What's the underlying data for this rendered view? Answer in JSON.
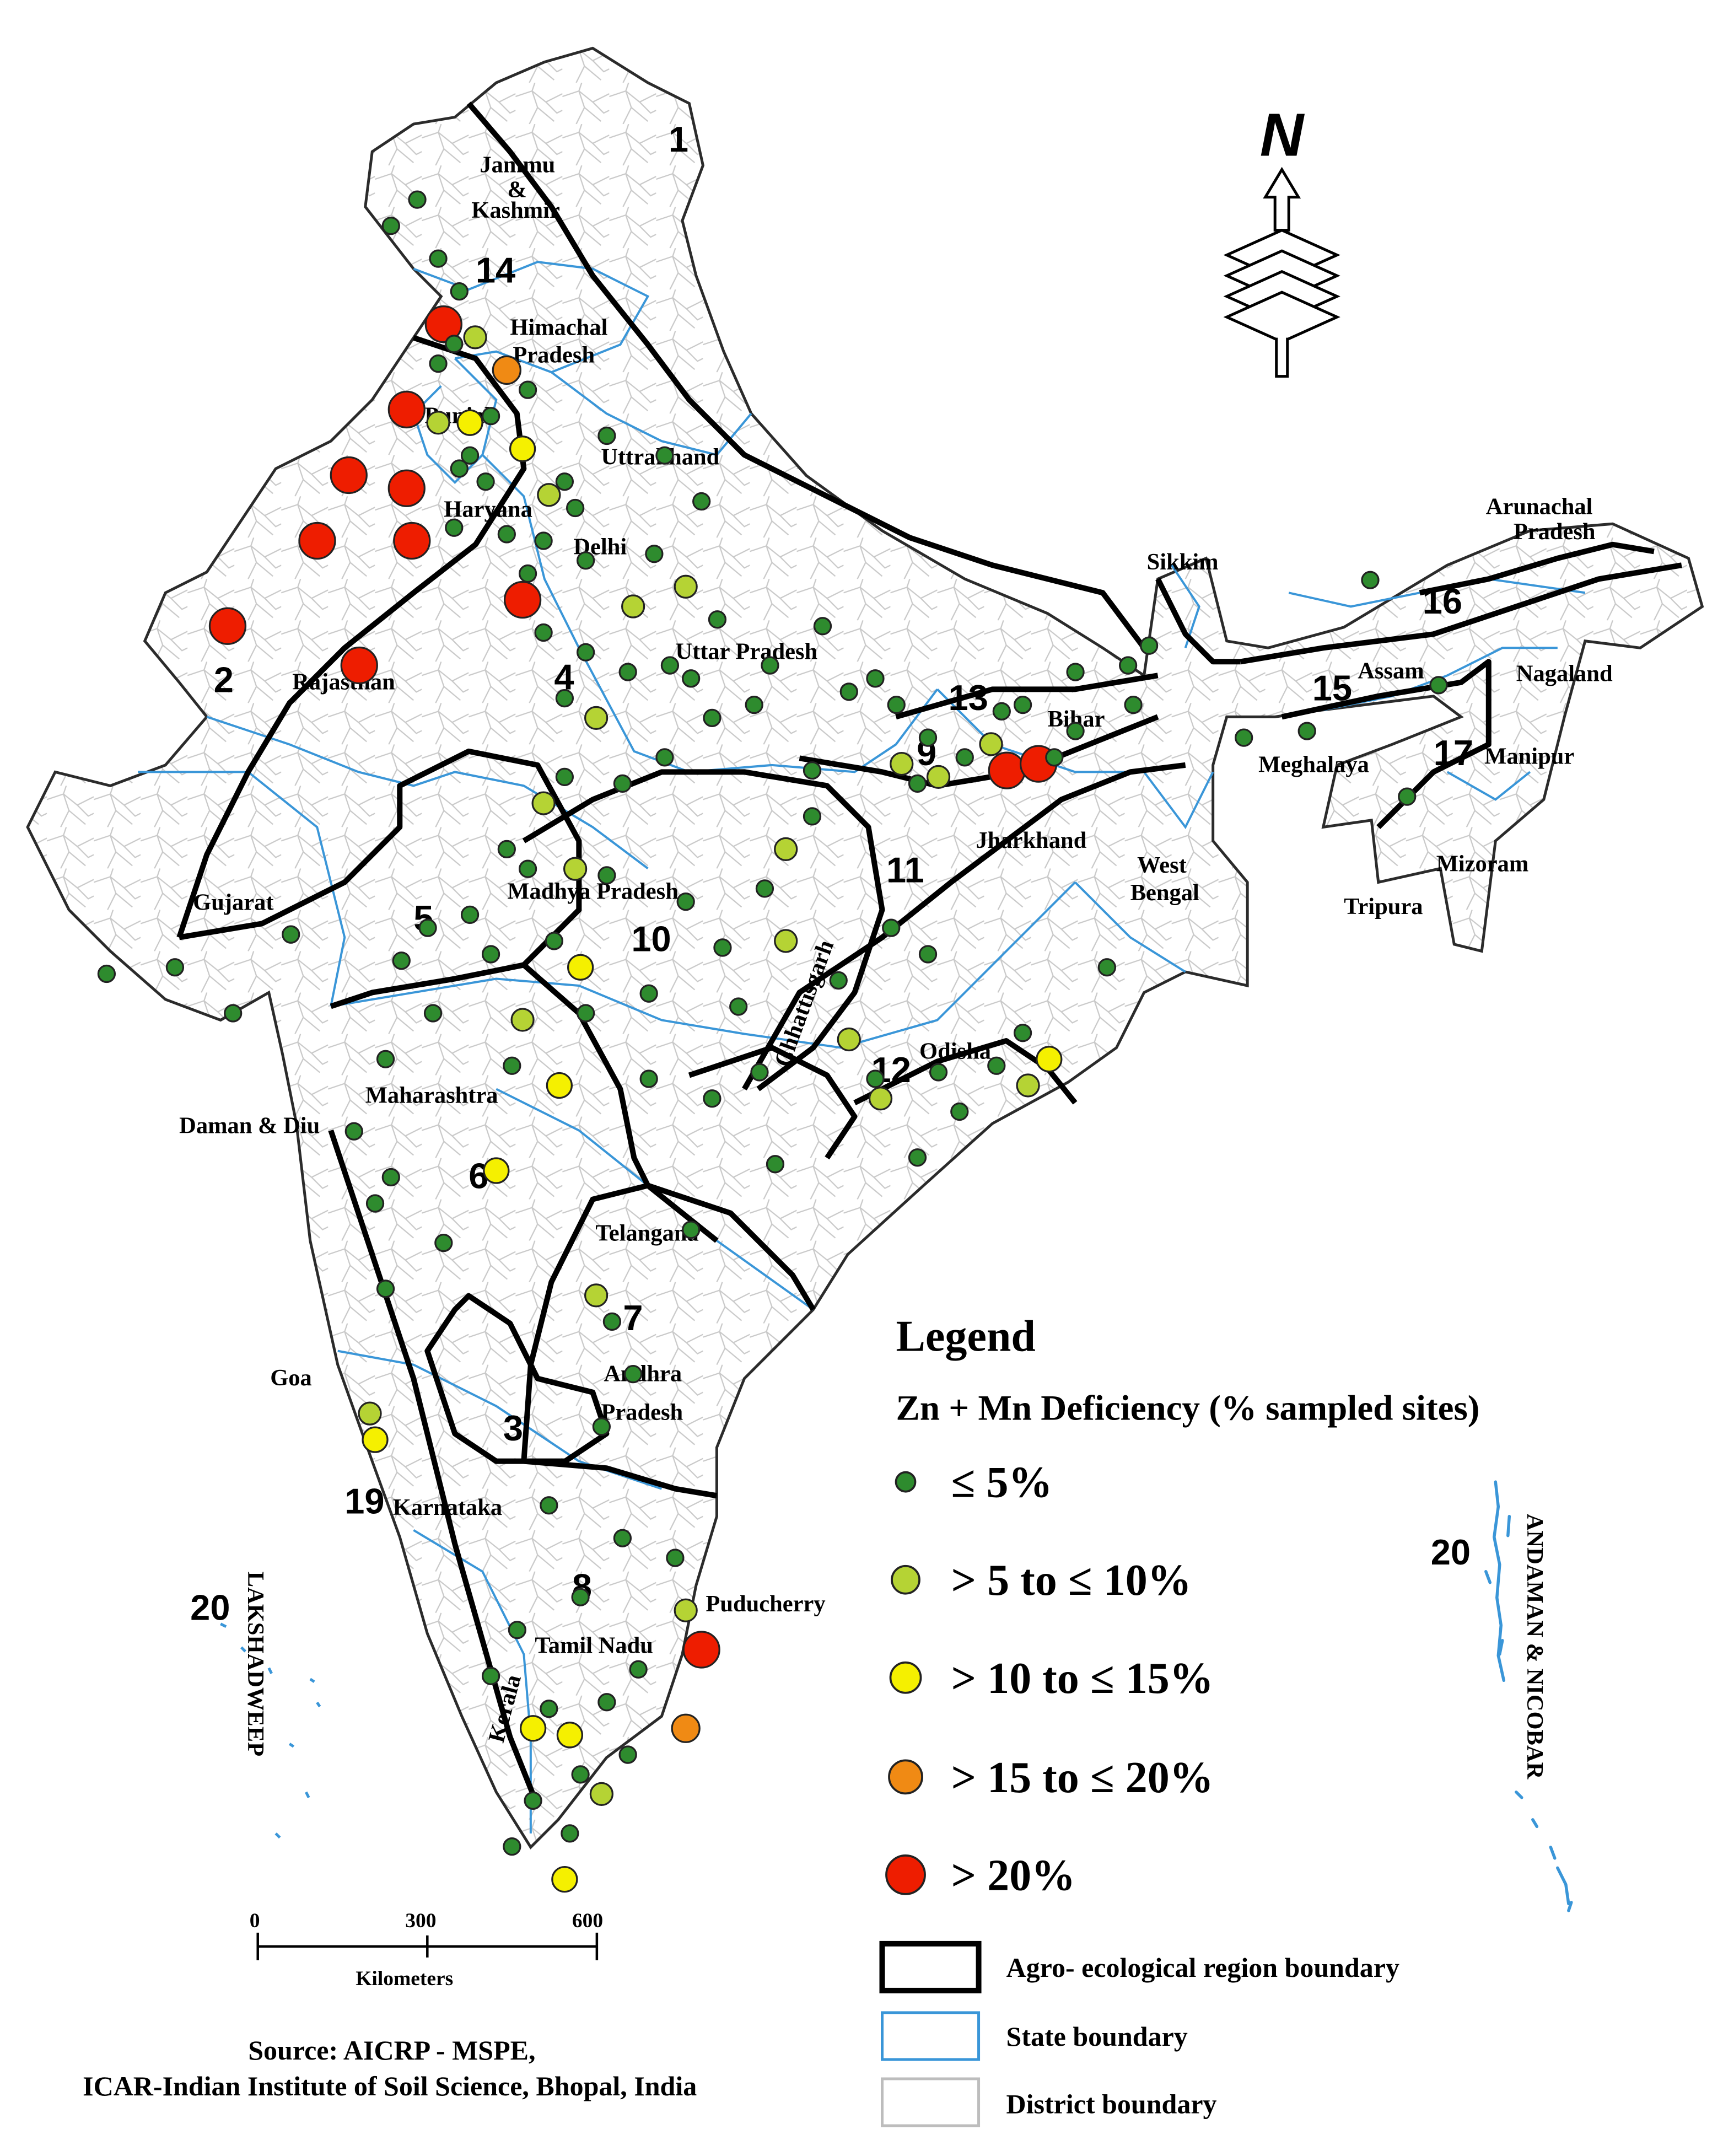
{
  "legend": {
    "title": "Legend",
    "subtitle": "Zn + Mn  Deficiency (% sampled sites)",
    "classes": [
      {
        "label": "≤ 5%",
        "color": "#2e8b2e"
      },
      {
        "label": "> 5 to ≤ 10%",
        "color": "#b5d334"
      },
      {
        "label": "> 10 to ≤ 15%",
        "color": "#f5f000"
      },
      {
        "label": "> 15 to ≤ 20%",
        "color": "#f08a14"
      },
      {
        "label": "> 20%",
        "color": "#ee1d00"
      }
    ],
    "boundaries": [
      {
        "label": "Agro- ecological region boundary",
        "color": "#000000"
      },
      {
        "label": "State boundary",
        "color": "#3a96d8"
      },
      {
        "label": "District boundary",
        "color": "#bdbdbd"
      }
    ]
  },
  "north_arrow": {
    "letter": "N"
  },
  "scale_bar": {
    "ticks": [
      "0",
      "300",
      "600"
    ],
    "unit": "Kilometers"
  },
  "source": {
    "line1": "Source: AICRP - MSPE,",
    "line2": "ICAR-Indian Institute of Soil Science, Bhopal, India"
  },
  "region_numbers": [
    "1",
    "2",
    "3",
    "4",
    "5",
    "6",
    "7",
    "8",
    "9",
    "10",
    "11",
    "12",
    "13",
    "14",
    "15",
    "16",
    "17",
    "19",
    "20",
    "20"
  ],
  "state_labels": [
    "Jammu",
    "&",
    "Kashmir",
    "Himachal",
    "Pradesh",
    "Punjab",
    "Uttrakhand",
    "Haryana",
    "Delhi",
    "Rajasthan",
    "Uttar Pradesh",
    "Sikkim",
    "Arunachal",
    "Pradesh",
    "Assam",
    "Nagaland",
    "Meghalaya",
    "Manipur",
    "Mizoram",
    "Tripura",
    "Bihar",
    "Jharkhand",
    "West",
    "Bengal",
    "Gujarat",
    "Madhya Pradesh",
    "Chhattisgarh",
    "Odisha",
    "Maharashtra",
    "Daman & Diu",
    "Telangana",
    "Andhra",
    "Pradesh",
    "Goa",
    "Karnataka",
    "Puducherry",
    "Tamil Nadu",
    "Kerala",
    "LAKSHADWEEP",
    "ANDAMAN & NICOBAR"
  ],
  "sites": [
    {
      "c": 0,
      "lon": 74.8,
      "lat": 34.1
    },
    {
      "c": 0,
      "lon": 74.3,
      "lat": 33.7
    },
    {
      "c": 0,
      "lon": 75.2,
      "lat": 33.2
    },
    {
      "c": 0,
      "lon": 75.6,
      "lat": 32.7
    },
    {
      "c": 4,
      "lon": 75.3,
      "lat": 32.2
    },
    {
      "c": 1,
      "lon": 75.9,
      "lat": 32.0
    },
    {
      "c": 0,
      "lon": 75.5,
      "lat": 31.9
    },
    {
      "c": 3,
      "lon": 76.5,
      "lat": 31.5
    },
    {
      "c": 0,
      "lon": 75.2,
      "lat": 31.6
    },
    {
      "c": 4,
      "lon": 74.6,
      "lat": 30.9
    },
    {
      "c": 1,
      "lon": 75.2,
      "lat": 30.7
    },
    {
      "c": 2,
      "lon": 75.8,
      "lat": 30.7
    },
    {
      "c": 0,
      "lon": 75.8,
      "lat": 30.2
    },
    {
      "c": 2,
      "lon": 76.8,
      "lat": 30.3
    },
    {
      "c": 4,
      "lon": 73.5,
      "lat": 29.9
    },
    {
      "c": 4,
      "lon": 74.6,
      "lat": 29.7
    },
    {
      "c": 1,
      "lon": 77.3,
      "lat": 29.6
    },
    {
      "c": 0,
      "lon": 77.8,
      "lat": 29.4
    },
    {
      "c": 4,
      "lon": 72.9,
      "lat": 28.9
    },
    {
      "c": 4,
      "lon": 74.7,
      "lat": 28.9
    },
    {
      "c": 4,
      "lon": 76.8,
      "lat": 28.0
    },
    {
      "c": 4,
      "lon": 71.2,
      "lat": 27.6
    },
    {
      "c": 4,
      "lon": 73.7,
      "lat": 27.0
    },
    {
      "c": 1,
      "lon": 78.9,
      "lat": 27.9
    },
    {
      "c": 1,
      "lon": 79.9,
      "lat": 28.2
    },
    {
      "c": 0,
      "lon": 80.0,
      "lat": 26.8
    },
    {
      "c": 1,
      "lon": 78.2,
      "lat": 26.2
    },
    {
      "c": 1,
      "lon": 77.2,
      "lat": 24.9
    },
    {
      "c": 1,
      "lon": 77.8,
      "lat": 23.9
    },
    {
      "c": 1,
      "lon": 81.8,
      "lat": 24.2
    },
    {
      "c": 2,
      "lon": 77.9,
      "lat": 22.4
    },
    {
      "c": 1,
      "lon": 76.8,
      "lat": 21.6
    },
    {
      "c": 2,
      "lon": 77.5,
      "lat": 20.6
    },
    {
      "c": 2,
      "lon": 76.3,
      "lat": 19.3
    },
    {
      "c": 1,
      "lon": 78.2,
      "lat": 17.4
    },
    {
      "c": 1,
      "lon": 73.9,
      "lat": 15.6
    },
    {
      "c": 2,
      "lon": 74.0,
      "lat": 15.2
    },
    {
      "c": 4,
      "lon": 80.2,
      "lat": 12.0
    },
    {
      "c": 1,
      "lon": 79.9,
      "lat": 12.6
    },
    {
      "c": 3,
      "lon": 79.9,
      "lat": 10.8
    },
    {
      "c": 2,
      "lon": 77.0,
      "lat": 10.8
    },
    {
      "c": 2,
      "lon": 77.7,
      "lat": 10.7
    },
    {
      "c": 1,
      "lon": 78.3,
      "lat": 9.8
    },
    {
      "c": 2,
      "lon": 77.6,
      "lat": 8.5
    },
    {
      "c": 1,
      "lon": 81.8,
      "lat": 22.8
    },
    {
      "c": 1,
      "lon": 83.6,
      "lat": 20.4
    },
    {
      "c": 1,
      "lon": 86.4,
      "lat": 20.6
    },
    {
      "c": 2,
      "lon": 86.8,
      "lat": 21.0
    },
    {
      "c": 1,
      "lon": 83.0,
      "lat": 21.3
    },
    {
      "c": 4,
      "lon": 86.0,
      "lat": 25.4
    },
    {
      "c": 4,
      "lon": 86.6,
      "lat": 25.5
    },
    {
      "c": 1,
      "lon": 85.7,
      "lat": 25.8
    },
    {
      "c": 1,
      "lon": 84.7,
      "lat": 25.3
    },
    {
      "c": 1,
      "lon": 84.0,
      "lat": 25.5
    },
    {
      "c": 0,
      "lon": 84.5,
      "lat": 25.9
    },
    {
      "c": 0,
      "lon": 85.2,
      "lat": 25.6
    },
    {
      "c": 0,
      "lon": 86.9,
      "lat": 25.6
    },
    {
      "c": 0,
      "lon": 87.3,
      "lat": 26.0
    },
    {
      "c": 0,
      "lon": 85.9,
      "lat": 26.3
    },
    {
      "c": 0,
      "lon": 86.3,
      "lat": 26.4
    },
    {
      "c": 0,
      "lon": 84.3,
      "lat": 25.2
    },
    {
      "c": 0,
      "lon": 83.9,
      "lat": 26.4
    },
    {
      "c": 0,
      "lon": 83.0,
      "lat": 26.6
    },
    {
      "c": 0,
      "lon": 82.3,
      "lat": 25.4
    },
    {
      "c": 0,
      "lon": 81.2,
      "lat": 26.4
    },
    {
      "c": 0,
      "lon": 80.4,
      "lat": 26.2
    },
    {
      "c": 0,
      "lon": 79.6,
      "lat": 27.0
    },
    {
      "c": 0,
      "lon": 78.8,
      "lat": 26.9
    },
    {
      "c": 0,
      "lon": 78.0,
      "lat": 27.2
    },
    {
      "c": 0,
      "lon": 77.6,
      "lat": 26.5
    },
    {
      "c": 0,
      "lon": 77.2,
      "lat": 27.5
    },
    {
      "c": 0,
      "lon": 76.5,
      "lat": 29.0
    },
    {
      "c": 0,
      "lon": 76.9,
      "lat": 28.4
    },
    {
      "c": 0,
      "lon": 77.6,
      "lat": 29.8
    },
    {
      "c": 0,
      "lon": 78.4,
      "lat": 30.5
    },
    {
      "c": 0,
      "lon": 79.5,
      "lat": 30.2
    },
    {
      "c": 0,
      "lon": 80.2,
      "lat": 29.5
    },
    {
      "c": 0,
      "lon": 79.3,
      "lat": 28.7
    },
    {
      "c": 0,
      "lon": 78.0,
      "lat": 28.6
    },
    {
      "c": 0,
      "lon": 77.2,
      "lat": 28.9
    },
    {
      "c": 0,
      "lon": 75.5,
      "lat": 29.1
    },
    {
      "c": 0,
      "lon": 75.6,
      "lat": 30.0
    },
    {
      "c": 0,
      "lon": 76.2,
      "lat": 30.8
    },
    {
      "c": 0,
      "lon": 76.9,
      "lat": 31.2
    },
    {
      "c": 0,
      "lon": 76.1,
      "lat": 29.8
    },
    {
      "c": 0,
      "lon": 80.5,
      "lat": 27.7
    },
    {
      "c": 0,
      "lon": 81.5,
      "lat": 27.0
    },
    {
      "c": 0,
      "lon": 82.5,
      "lat": 27.6
    },
    {
      "c": 0,
      "lon": 83.5,
      "lat": 26.8
    },
    {
      "c": 0,
      "lon": 79.5,
      "lat": 25.6
    },
    {
      "c": 0,
      "lon": 78.7,
      "lat": 25.2
    },
    {
      "c": 0,
      "lon": 77.6,
      "lat": 25.3
    },
    {
      "c": 0,
      "lon": 76.5,
      "lat": 24.2
    },
    {
      "c": 0,
      "lon": 75.8,
      "lat": 23.2
    },
    {
      "c": 0,
      "lon": 76.9,
      "lat": 23.9
    },
    {
      "c": 0,
      "lon": 78.4,
      "lat": 23.8
    },
    {
      "c": 0,
      "lon": 79.9,
      "lat": 23.4
    },
    {
      "c": 0,
      "lon": 80.6,
      "lat": 22.7
    },
    {
      "c": 0,
      "lon": 81.4,
      "lat": 23.6
    },
    {
      "c": 0,
      "lon": 82.3,
      "lat": 24.7
    },
    {
      "c": 0,
      "lon": 79.2,
      "lat": 22.0
    },
    {
      "c": 0,
      "lon": 78.0,
      "lat": 21.7
    },
    {
      "c": 0,
      "lon": 77.4,
      "lat": 22.8
    },
    {
      "c": 0,
      "lon": 76.2,
      "lat": 22.6
    },
    {
      "c": 0,
      "lon": 75.0,
      "lat": 23.0
    },
    {
      "c": 0,
      "lon": 74.5,
      "lat": 22.5
    },
    {
      "c": 0,
      "lon": 75.1,
      "lat": 21.7
    },
    {
      "c": 0,
      "lon": 74.2,
      "lat": 21.0
    },
    {
      "c": 0,
      "lon": 73.6,
      "lat": 19.9
    },
    {
      "c": 0,
      "lon": 74.3,
      "lat": 19.2
    },
    {
      "c": 0,
      "lon": 75.3,
      "lat": 18.2
    },
    {
      "c": 0,
      "lon": 74.0,
      "lat": 18.8
    },
    {
      "c": 0,
      "lon": 74.2,
      "lat": 17.5
    },
    {
      "c": 0,
      "lon": 76.6,
      "lat": 20.9
    },
    {
      "c": 0,
      "lon": 79.2,
      "lat": 20.7
    },
    {
      "c": 0,
      "lon": 80.4,
      "lat": 20.4
    },
    {
      "c": 0,
      "lon": 81.3,
      "lat": 20.8
    },
    {
      "c": 0,
      "lon": 83.5,
      "lat": 20.7
    },
    {
      "c": 0,
      "lon": 84.7,
      "lat": 20.8
    },
    {
      "c": 0,
      "lon": 85.8,
      "lat": 20.9
    },
    {
      "c": 0,
      "lon": 85.1,
      "lat": 20.2
    },
    {
      "c": 0,
      "lon": 84.3,
      "lat": 19.5
    },
    {
      "c": 0,
      "lon": 81.6,
      "lat": 19.4
    },
    {
      "c": 0,
      "lon": 80.0,
      "lat": 18.4
    },
    {
      "c": 0,
      "lon": 78.5,
      "lat": 17.0
    },
    {
      "c": 0,
      "lon": 78.9,
      "lat": 16.2
    },
    {
      "c": 0,
      "lon": 78.3,
      "lat": 15.4
    },
    {
      "c": 0,
      "lon": 77.3,
      "lat": 14.2
    },
    {
      "c": 0,
      "lon": 78.7,
      "lat": 13.7
    },
    {
      "c": 0,
      "lon": 79.7,
      "lat": 13.4
    },
    {
      "c": 0,
      "lon": 77.9,
      "lat": 12.8
    },
    {
      "c": 0,
      "lon": 76.7,
      "lat": 12.3
    },
    {
      "c": 0,
      "lon": 79.0,
      "lat": 11.7
    },
    {
      "c": 0,
      "lon": 78.4,
      "lat": 11.2
    },
    {
      "c": 0,
      "lon": 76.2,
      "lat": 11.6
    },
    {
      "c": 0,
      "lon": 77.3,
      "lat": 11.1
    },
    {
      "c": 0,
      "lon": 78.8,
      "lat": 10.4
    },
    {
      "c": 0,
      "lon": 77.9,
      "lat": 10.1
    },
    {
      "c": 0,
      "lon": 77.0,
      "lat": 9.7
    },
    {
      "c": 0,
      "lon": 76.6,
      "lat": 9.0
    },
    {
      "c": 0,
      "lon": 77.7,
      "lat": 9.2
    },
    {
      "c": 0,
      "lon": 70.2,
      "lat": 22.4
    },
    {
      "c": 0,
      "lon": 72.4,
      "lat": 22.9
    },
    {
      "c": 0,
      "lon": 71.3,
      "lat": 21.7
    },
    {
      "c": 0,
      "lon": 68.9,
      "lat": 22.3
    },
    {
      "c": 0,
      "lon": 83.8,
      "lat": 23.0
    },
    {
      "c": 0,
      "lon": 82.8,
      "lat": 22.2
    },
    {
      "c": 0,
      "lon": 84.5,
      "lat": 22.6
    },
    {
      "c": 0,
      "lon": 86.3,
      "lat": 21.4
    },
    {
      "c": 0,
      "lon": 87.9,
      "lat": 22.4
    },
    {
      "c": 0,
      "lon": 88.4,
      "lat": 26.4
    },
    {
      "c": 0,
      "lon": 87.3,
      "lat": 26.9
    },
    {
      "c": 0,
      "lon": 88.3,
      "lat": 27.0
    },
    {
      "c": 0,
      "lon": 88.7,
      "lat": 27.3
    },
    {
      "c": 0,
      "lon": 92.9,
      "lat": 28.3
    },
    {
      "c": 0,
      "lon": 90.5,
      "lat": 25.9
    },
    {
      "c": 0,
      "lon": 91.7,
      "lat": 26.0
    },
    {
      "c": 0,
      "lon": 94.2,
      "lat": 26.7
    },
    {
      "c": 0,
      "lon": 93.6,
      "lat": 25.0
    },
    {
      "c": 0,
      "lon": 80.9,
      "lat": 21.8
    }
  ]
}
